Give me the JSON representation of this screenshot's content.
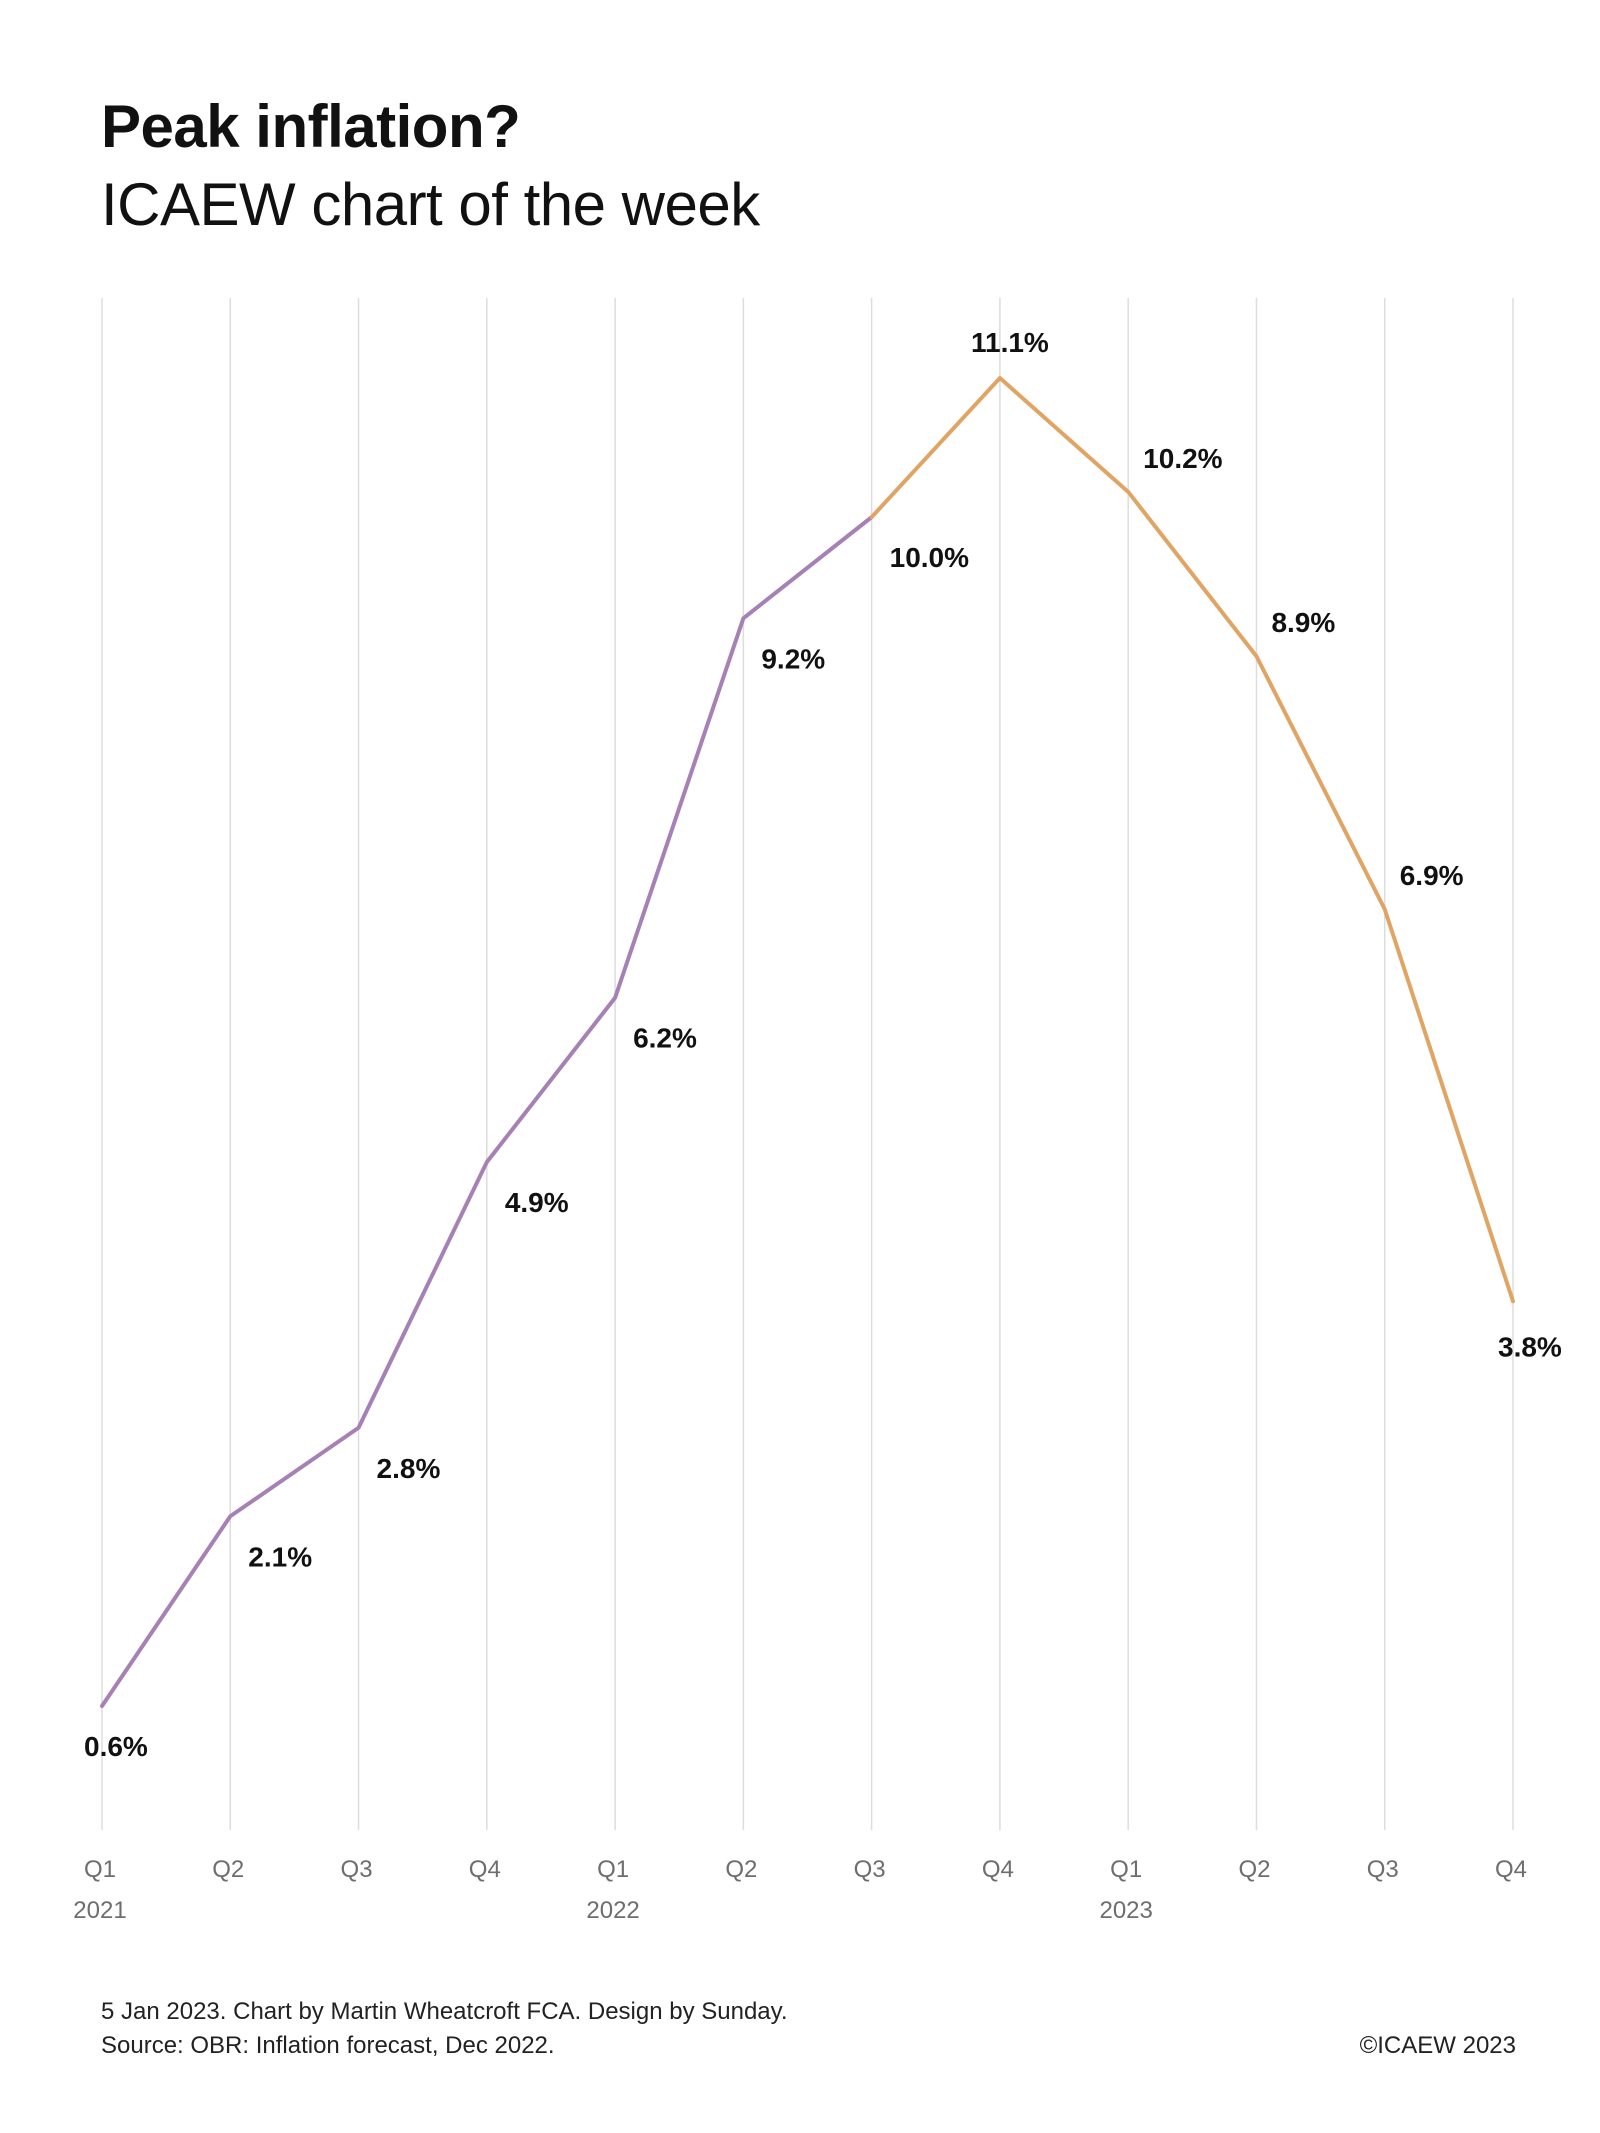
{
  "header": {
    "title": "Peak inflation?",
    "subtitle": "ICAEW chart of the week"
  },
  "footer": {
    "credit": "5 Jan 2023.   Chart by Martin Wheatcroft FCA. Design by Sunday.",
    "source": "Source: OBR: Inflation forecast, Dec 2022.",
    "copyright": "©ICAEW 2023"
  },
  "chart_data": {
    "type": "line",
    "title": "Peak inflation?",
    "subtitle": "ICAEW chart of the week",
    "xlabel": "",
    "ylabel": "",
    "grid": "vertical",
    "categories": [
      "Q1",
      "Q2",
      "Q3",
      "Q4",
      "Q1",
      "Q2",
      "Q3",
      "Q4",
      "Q1",
      "Q2",
      "Q3",
      "Q4"
    ],
    "years": [
      {
        "label": "2021",
        "index": 0
      },
      {
        "label": "2022",
        "index": 4
      },
      {
        "label": "2023",
        "index": 8
      }
    ],
    "values": [
      0.6,
      2.1,
      2.8,
      4.9,
      6.2,
      9.2,
      10.0,
      11.1,
      10.2,
      8.9,
      6.9,
      3.8
    ],
    "data_labels": [
      "0.6%",
      "2.1%",
      "2.8%",
      "4.9%",
      "6.2%",
      "9.2%",
      "10.0%",
      "11.1%",
      "10.2%",
      "8.9%",
      "6.9%",
      "3.8%"
    ],
    "segments": [
      {
        "from_index": 0,
        "to_index": 6,
        "color": "#a681b5"
      },
      {
        "from_index": 6,
        "to_index": 11,
        "color": "#e0a465"
      }
    ],
    "ylim": [
      0,
      12
    ],
    "colors": {
      "actual": "#a681b5",
      "forecast": "#e0a465",
      "grid": "#dddddd"
    }
  }
}
